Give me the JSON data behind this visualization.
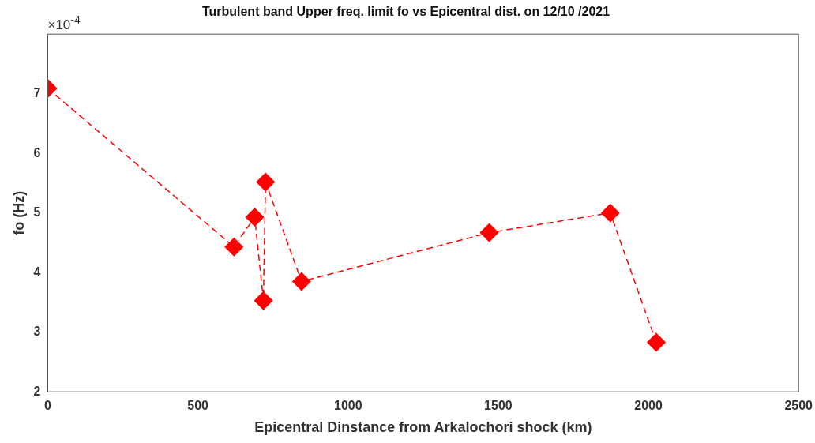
{
  "chart_data": {
    "type": "line",
    "title": "Turbulent band Upper freq. limit fo vs Epicentral dist. on 12/10 /2021",
    "xlabel": "Epicentral Dinstance from Arkalochori shock (km)",
    "ylabel": "fo (Hz)",
    "annotations": [
      "×10$^{-4}$"
    ],
    "x": [
      0,
      620,
      689,
      718,
      725,
      845,
      1470,
      1873,
      2026
    ],
    "series": [
      {
        "color": "#ff0000",
        "values": [
          7.09,
          4.43,
          4.93,
          3.53,
          5.52,
          3.85,
          4.67,
          5.0,
          2.83
        ]
      }
    ],
    "xlim": [
      0,
      2500
    ],
    "xticks": [
      0,
      500,
      1000,
      1500,
      2000,
      2500
    ],
    "ylim": [
      2,
      8
    ],
    "yticks": [
      2,
      3,
      4,
      5,
      6,
      7
    ],
    "grid": false,
    "legend": false,
    "marker": "diamond",
    "line_style": "dashed"
  }
}
